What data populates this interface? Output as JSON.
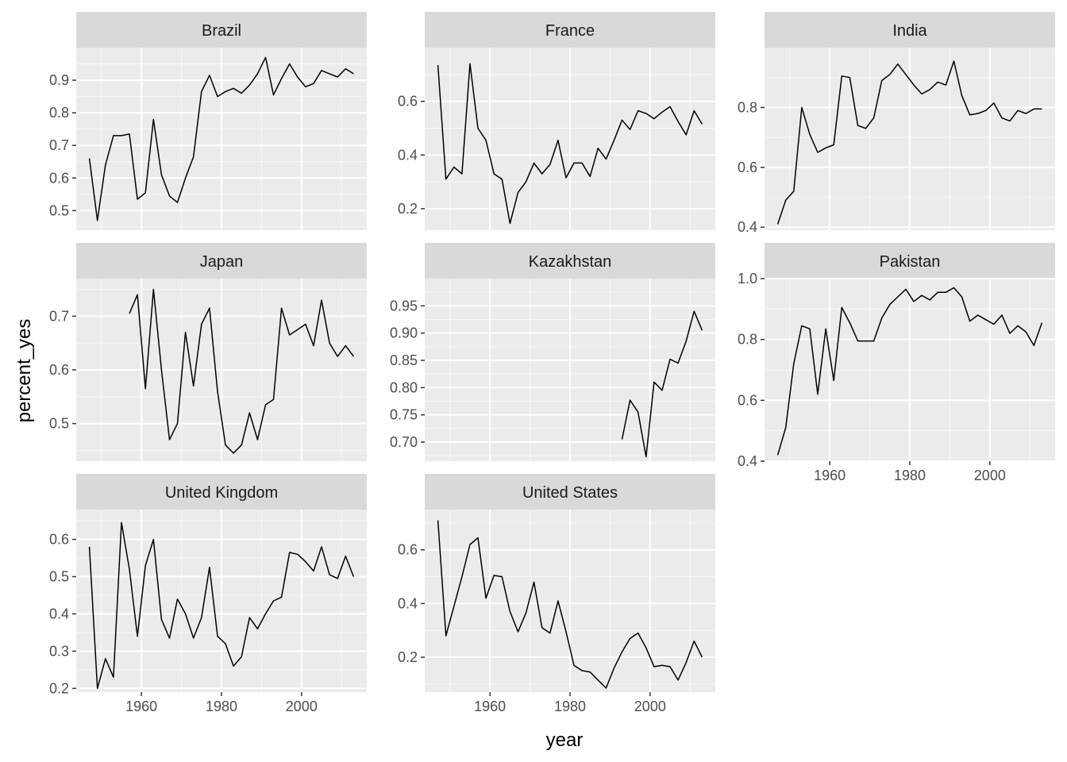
{
  "chart_data": {
    "type": "line",
    "facet": "wrap",
    "xlabel": "year",
    "ylabel": "percent_yes",
    "x_ticks": [
      1960,
      1980,
      2000
    ],
    "scales": "free_y",
    "panel_background": "#ebebeb",
    "strip_background": "#d9d9d9",
    "grid": true,
    "line_color": "#000000",
    "panels": [
      {
        "name": "Brazil",
        "yticks": [
          0.5,
          0.6,
          0.7,
          0.8,
          0.9
        ],
        "ylim": [
          0.44,
          1.0
        ],
        "x": [
          1947,
          1949,
          1951,
          1953,
          1955,
          1957,
          1959,
          1961,
          1963,
          1965,
          1967,
          1969,
          1971,
          1973,
          1975,
          1977,
          1979,
          1981,
          1983,
          1985,
          1987,
          1989,
          1991,
          1993,
          1995,
          1997,
          1999,
          2001,
          2003,
          2005,
          2007,
          2009,
          2011,
          2013
        ],
        "y": [
          0.66,
          0.47,
          0.64,
          0.73,
          0.73,
          0.735,
          0.535,
          0.555,
          0.78,
          0.61,
          0.545,
          0.525,
          0.6,
          0.665,
          0.865,
          0.915,
          0.85,
          0.865,
          0.875,
          0.86,
          0.885,
          0.92,
          0.97,
          0.855,
          0.905,
          0.95,
          0.91,
          0.88,
          0.89,
          0.93,
          0.92,
          0.91,
          0.935,
          0.92
        ]
      },
      {
        "name": "France",
        "yticks": [
          0.2,
          0.4,
          0.6
        ],
        "ylim": [
          0.12,
          0.8
        ],
        "x": [
          1947,
          1949,
          1951,
          1953,
          1955,
          1957,
          1959,
          1961,
          1963,
          1965,
          1967,
          1969,
          1971,
          1973,
          1975,
          1977,
          1979,
          1981,
          1983,
          1985,
          1987,
          1989,
          1991,
          1993,
          1995,
          1997,
          1999,
          2001,
          2003,
          2005,
          2007,
          2009,
          2011,
          2013
        ],
        "y": [
          0.735,
          0.31,
          0.355,
          0.33,
          0.74,
          0.5,
          0.455,
          0.33,
          0.31,
          0.145,
          0.26,
          0.3,
          0.37,
          0.33,
          0.365,
          0.455,
          0.315,
          0.37,
          0.37,
          0.32,
          0.425,
          0.385,
          0.455,
          0.53,
          0.495,
          0.565,
          0.555,
          0.535,
          0.56,
          0.58,
          0.525,
          0.475,
          0.565,
          0.515
        ]
      },
      {
        "name": "India",
        "yticks": [
          0.4,
          0.6,
          0.8
        ],
        "ylim": [
          0.39,
          1.0
        ],
        "x": [
          1947,
          1949,
          1951,
          1953,
          1955,
          1957,
          1959,
          1961,
          1963,
          1965,
          1967,
          1969,
          1971,
          1973,
          1975,
          1977,
          1979,
          1981,
          1983,
          1985,
          1987,
          1989,
          1991,
          1993,
          1995,
          1997,
          1999,
          2001,
          2003,
          2005,
          2007,
          2009,
          2011,
          2013
        ],
        "y": [
          0.41,
          0.49,
          0.52,
          0.8,
          0.71,
          0.65,
          0.665,
          0.675,
          0.905,
          0.9,
          0.74,
          0.73,
          0.765,
          0.89,
          0.91,
          0.945,
          0.91,
          0.875,
          0.845,
          0.86,
          0.885,
          0.875,
          0.955,
          0.84,
          0.775,
          0.78,
          0.79,
          0.815,
          0.765,
          0.755,
          0.79,
          0.78,
          0.795,
          0.795
        ]
      },
      {
        "name": "Japan",
        "yticks": [
          0.5,
          0.6,
          0.7
        ],
        "ylim": [
          0.43,
          0.77
        ],
        "x": [
          1957,
          1959,
          1961,
          1963,
          1965,
          1967,
          1969,
          1971,
          1973,
          1975,
          1977,
          1979,
          1981,
          1983,
          1985,
          1987,
          1989,
          1991,
          1993,
          1995,
          1997,
          1999,
          2001,
          2003,
          2005,
          2007,
          2009,
          2011,
          2013
        ],
        "y": [
          0.705,
          0.74,
          0.565,
          0.75,
          0.6,
          0.47,
          0.5,
          0.67,
          0.57,
          0.685,
          0.715,
          0.56,
          0.46,
          0.445,
          0.46,
          0.52,
          0.47,
          0.535,
          0.545,
          0.715,
          0.665,
          0.675,
          0.685,
          0.645,
          0.73,
          0.65,
          0.625,
          0.645,
          0.625
        ]
      },
      {
        "name": "Kazakhstan",
        "yticks": [
          0.7,
          0.75,
          0.8,
          0.85,
          0.9,
          0.95
        ],
        "ylim": [
          0.665,
          1.0
        ],
        "ytick_format": "0.00",
        "x": [
          1993,
          1995,
          1997,
          1999,
          2001,
          2003,
          2005,
          2007,
          2009,
          2011,
          2013
        ],
        "y": [
          0.705,
          0.777,
          0.755,
          0.673,
          0.81,
          0.795,
          0.852,
          0.845,
          0.885,
          0.94,
          0.905
        ]
      },
      {
        "name": "Pakistan",
        "yticks": [
          0.4,
          0.6,
          0.8,
          1.0
        ],
        "ylim": [
          0.4,
          1.0
        ],
        "x": [
          1947,
          1949,
          1951,
          1953,
          1955,
          1957,
          1959,
          1961,
          1963,
          1965,
          1967,
          1969,
          1971,
          1973,
          1975,
          1977,
          1979,
          1981,
          1983,
          1985,
          1987,
          1989,
          1991,
          1993,
          1995,
          1997,
          1999,
          2001,
          2003,
          2005,
          2007,
          2009,
          2011,
          2013
        ],
        "y": [
          0.42,
          0.51,
          0.72,
          0.845,
          0.835,
          0.62,
          0.835,
          0.665,
          0.905,
          0.855,
          0.795,
          0.795,
          0.795,
          0.87,
          0.915,
          0.94,
          0.965,
          0.925,
          0.945,
          0.93,
          0.955,
          0.955,
          0.97,
          0.94,
          0.86,
          0.88,
          0.865,
          0.85,
          0.88,
          0.82,
          0.845,
          0.825,
          0.78,
          0.855
        ]
      },
      {
        "name": "United Kingdom",
        "yticks": [
          0.2,
          0.3,
          0.4,
          0.5,
          0.6
        ],
        "ylim": [
          0.19,
          0.68
        ],
        "x": [
          1947,
          1949,
          1951,
          1953,
          1955,
          1957,
          1959,
          1961,
          1963,
          1965,
          1967,
          1969,
          1971,
          1973,
          1975,
          1977,
          1979,
          1981,
          1983,
          1985,
          1987,
          1989,
          1991,
          1993,
          1995,
          1997,
          1999,
          2001,
          2003,
          2005,
          2007,
          2009,
          2011,
          2013
        ],
        "y": [
          0.58,
          0.2,
          0.28,
          0.23,
          0.645,
          0.52,
          0.34,
          0.53,
          0.6,
          0.385,
          0.335,
          0.44,
          0.4,
          0.335,
          0.39,
          0.525,
          0.34,
          0.32,
          0.26,
          0.285,
          0.39,
          0.36,
          0.4,
          0.435,
          0.445,
          0.565,
          0.56,
          0.54,
          0.515,
          0.58,
          0.505,
          0.495,
          0.555,
          0.5
        ]
      },
      {
        "name": "United States",
        "yticks": [
          0.2,
          0.4,
          0.6
        ],
        "ylim": [
          0.07,
          0.75
        ],
        "x": [
          1947,
          1949,
          1951,
          1953,
          1955,
          1957,
          1959,
          1961,
          1963,
          1965,
          1967,
          1969,
          1971,
          1973,
          1975,
          1977,
          1979,
          1981,
          1983,
          1985,
          1987,
          1989,
          1991,
          1993,
          1995,
          1997,
          1999,
          2001,
          2003,
          2005,
          2007,
          2009,
          2011,
          2013
        ],
        "y": [
          0.71,
          0.28,
          0.39,
          0.5,
          0.62,
          0.645,
          0.42,
          0.505,
          0.5,
          0.37,
          0.295,
          0.365,
          0.48,
          0.31,
          0.29,
          0.41,
          0.295,
          0.17,
          0.15,
          0.145,
          0.115,
          0.085,
          0.16,
          0.22,
          0.27,
          0.29,
          0.235,
          0.165,
          0.17,
          0.165,
          0.115,
          0.18,
          0.26,
          0.2
        ]
      }
    ]
  }
}
